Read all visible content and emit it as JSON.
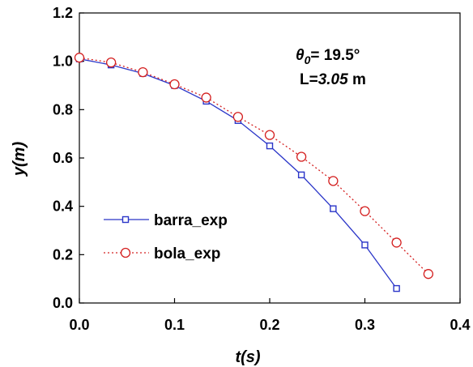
{
  "chart_data": {
    "type": "line",
    "xlabel": "t(s)",
    "ylabel": "y(m)",
    "xlim": [
      0.0,
      0.4
    ],
    "ylim": [
      0.0,
      1.2
    ],
    "xticks": [
      "0.0",
      "0.1",
      "0.2",
      "0.3",
      "0.4"
    ],
    "yticks": [
      "0.0",
      "0.2",
      "0.4",
      "0.6",
      "0.8",
      "1.0",
      "1.2"
    ],
    "grid": false,
    "legend_position": "lower-left",
    "annotations": {
      "theta_symbol": "θ",
      "theta_subscript": "0",
      "theta_value": "= 19.5°",
      "length_prefix": "L=",
      "length_value": "3.05",
      "length_unit": " m"
    },
    "series": [
      {
        "name": "barra_exp",
        "color": "#2a35c8",
        "marker": "square",
        "line": "solid",
        "x": [
          0.0,
          0.0333,
          0.0667,
          0.1,
          0.1333,
          0.1667,
          0.2,
          0.2333,
          0.2667,
          0.3,
          0.3333
        ],
        "y": [
          1.01,
          0.985,
          0.95,
          0.9,
          0.835,
          0.755,
          0.65,
          0.53,
          0.39,
          0.24,
          0.06
        ]
      },
      {
        "name": "bola_exp",
        "color": "#d42020",
        "marker": "circle",
        "line": "dotted",
        "x": [
          0.0,
          0.0333,
          0.0667,
          0.1,
          0.1333,
          0.1667,
          0.2,
          0.2333,
          0.2667,
          0.3,
          0.3333,
          0.3667
        ],
        "y": [
          1.015,
          0.995,
          0.955,
          0.905,
          0.85,
          0.77,
          0.695,
          0.605,
          0.505,
          0.38,
          0.25,
          0.12
        ]
      }
    ]
  }
}
